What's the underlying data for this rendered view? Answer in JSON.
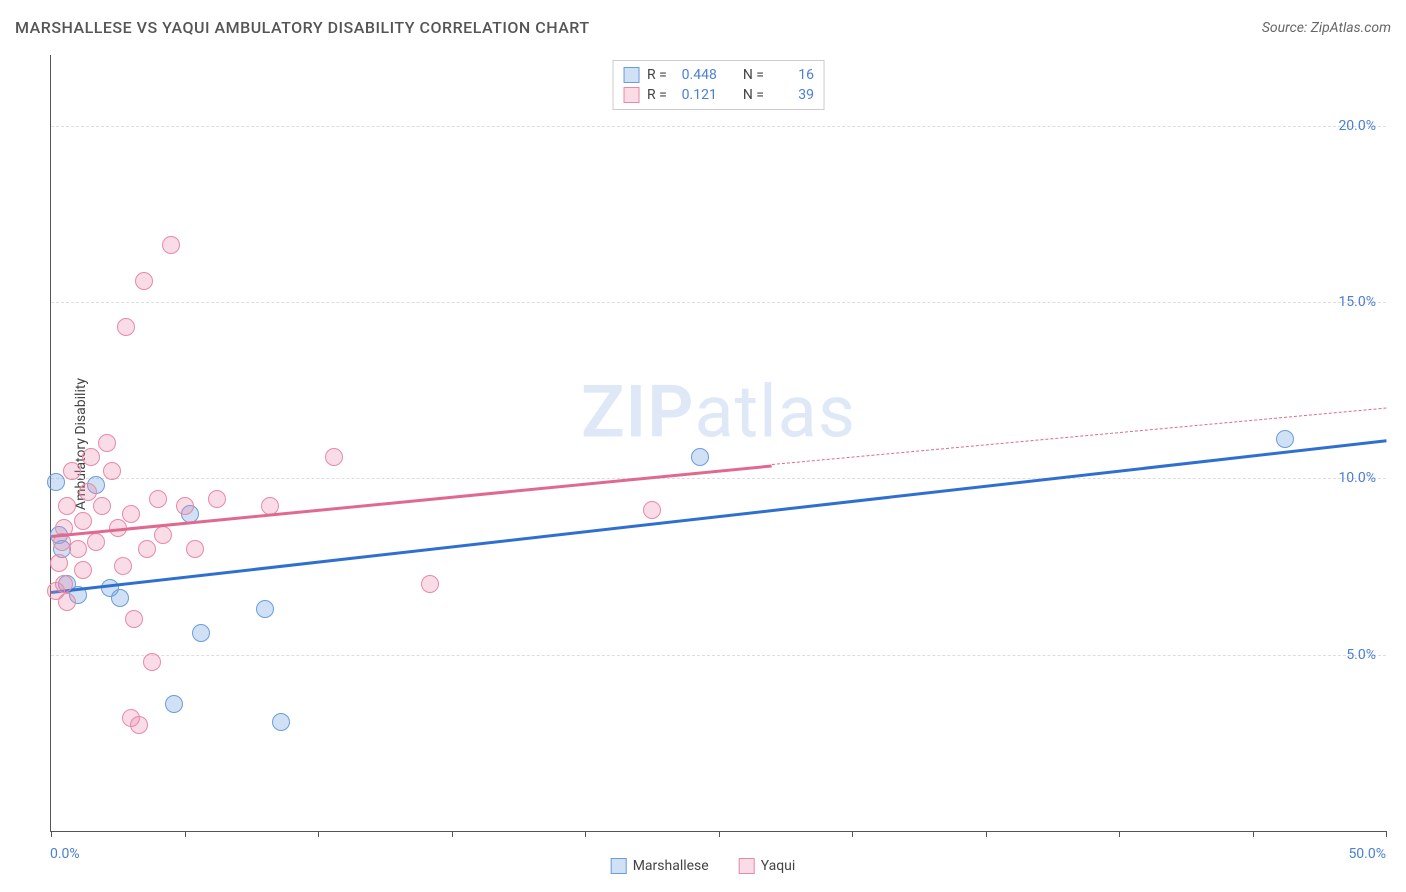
{
  "header": {
    "title": "MARSHALLESE VS YAQUI AMBULATORY DISABILITY CORRELATION CHART",
    "source": "Source: ZipAtlas.com"
  },
  "watermark": {
    "left": "ZIP",
    "right": "atlas"
  },
  "chart": {
    "type": "scatter",
    "y_axis_label": "Ambulatory Disability",
    "xlim": [
      0,
      50
    ],
    "ylim": [
      0,
      22
    ],
    "x_ticks": [
      0,
      5,
      10,
      15,
      20,
      25,
      30,
      35,
      40,
      45,
      50
    ],
    "x_label_min": "0.0%",
    "x_label_max": "50.0%",
    "y_gridlines": [
      {
        "v": 5,
        "label": "5.0%"
      },
      {
        "v": 10,
        "label": "10.0%"
      },
      {
        "v": 15,
        "label": "15.0%"
      },
      {
        "v": 20,
        "label": "20.0%"
      }
    ],
    "grid_color": "#dddddd",
    "tick_label_color": "#4a7fd6",
    "background_color": "#ffffff",
    "marker_radius": 9,
    "marker_stroke_width": 1.5,
    "series": [
      {
        "name": "Marshallese",
        "fill_color": "rgba(120,165,225,0.35)",
        "stroke_color": "#6a9de0",
        "line_color": "#2f6fd0",
        "R": "0.448",
        "N": "16",
        "trend": {
          "x1": 0,
          "y1": 6.8,
          "x2": 50,
          "y2": 11.1
        },
        "points": [
          {
            "x": 0.2,
            "y": 9.9
          },
          {
            "x": 0.3,
            "y": 8.4
          },
          {
            "x": 0.4,
            "y": 8.0
          },
          {
            "x": 0.6,
            "y": 7.0
          },
          {
            "x": 1.0,
            "y": 6.7
          },
          {
            "x": 1.7,
            "y": 9.8
          },
          {
            "x": 2.2,
            "y": 6.9
          },
          {
            "x": 2.6,
            "y": 6.6
          },
          {
            "x": 4.6,
            "y": 3.6
          },
          {
            "x": 5.2,
            "y": 9.0
          },
          {
            "x": 5.6,
            "y": 5.6
          },
          {
            "x": 8.0,
            "y": 6.3
          },
          {
            "x": 8.6,
            "y": 3.1
          },
          {
            "x": 24.3,
            "y": 10.6
          },
          {
            "x": 46.2,
            "y": 11.1
          }
        ]
      },
      {
        "name": "Yaqui",
        "fill_color": "rgba(235,140,170,0.30)",
        "stroke_color": "#e88aa6",
        "line_color": "#e06a8f",
        "R": "0.121",
        "N": "39",
        "trend_solid": {
          "x1": 0,
          "y1": 8.4,
          "x2": 27,
          "y2": 10.4
        },
        "trend_dashed": {
          "x1": 27,
          "y1": 10.4,
          "x2": 50,
          "y2": 12.0
        },
        "points": [
          {
            "x": 0.2,
            "y": 6.8
          },
          {
            "x": 0.3,
            "y": 7.6
          },
          {
            "x": 0.4,
            "y": 8.2
          },
          {
            "x": 0.5,
            "y": 8.6
          },
          {
            "x": 0.5,
            "y": 7.0
          },
          {
            "x": 0.6,
            "y": 6.5
          },
          {
            "x": 0.6,
            "y": 9.2
          },
          {
            "x": 0.8,
            "y": 10.2
          },
          {
            "x": 1.0,
            "y": 8.0
          },
          {
            "x": 1.2,
            "y": 7.4
          },
          {
            "x": 1.2,
            "y": 8.8
          },
          {
            "x": 1.4,
            "y": 9.6
          },
          {
            "x": 1.5,
            "y": 10.6
          },
          {
            "x": 1.7,
            "y": 8.2
          },
          {
            "x": 1.9,
            "y": 9.2
          },
          {
            "x": 2.1,
            "y": 11.0
          },
          {
            "x": 2.3,
            "y": 10.2
          },
          {
            "x": 2.5,
            "y": 8.6
          },
          {
            "x": 2.7,
            "y": 7.5
          },
          {
            "x": 2.8,
            "y": 14.3
          },
          {
            "x": 3.0,
            "y": 9.0
          },
          {
            "x": 3.1,
            "y": 6.0
          },
          {
            "x": 3.5,
            "y": 15.6
          },
          {
            "x": 3.6,
            "y": 8.0
          },
          {
            "x": 3.8,
            "y": 4.8
          },
          {
            "x": 3.0,
            "y": 3.2
          },
          {
            "x": 3.3,
            "y": 3.0
          },
          {
            "x": 4.0,
            "y": 9.4
          },
          {
            "x": 4.2,
            "y": 8.4
          },
          {
            "x": 4.5,
            "y": 16.6
          },
          {
            "x": 5.0,
            "y": 9.2
          },
          {
            "x": 5.4,
            "y": 8.0
          },
          {
            "x": 6.2,
            "y": 9.4
          },
          {
            "x": 8.2,
            "y": 9.2
          },
          {
            "x": 10.6,
            "y": 10.6
          },
          {
            "x": 14.2,
            "y": 7.0
          },
          {
            "x": 22.5,
            "y": 9.1
          }
        ]
      }
    ]
  },
  "stats_box": {
    "rows": [
      {
        "swatch_fill": "rgba(120,165,225,0.35)",
        "swatch_stroke": "#6a9de0",
        "R_label": "R =",
        "R": "0.448",
        "N_label": "N =",
        "N": "16"
      },
      {
        "swatch_fill": "rgba(235,140,170,0.30)",
        "swatch_stroke": "#e88aa6",
        "R_label": "R =",
        "R": "0.121",
        "N_label": "N =",
        "N": "39"
      }
    ]
  },
  "bottom_legend": {
    "items": [
      {
        "fill": "rgba(120,165,225,0.35)",
        "stroke": "#6a9de0",
        "label": "Marshallese"
      },
      {
        "fill": "rgba(235,140,170,0.30)",
        "stroke": "#e88aa6",
        "label": "Yaqui"
      }
    ]
  }
}
